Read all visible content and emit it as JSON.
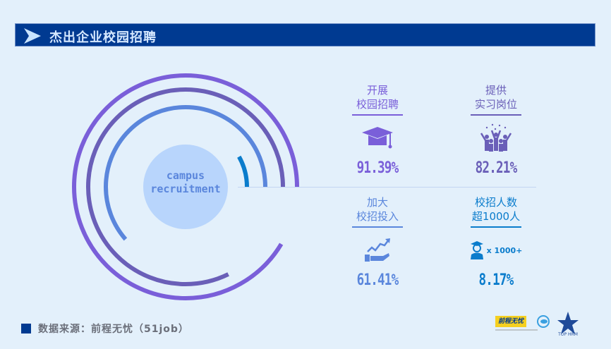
{
  "header": {
    "title": "杰出企业校园招聘",
    "icon": "chevron-right-icon"
  },
  "center_label": {
    "line1": "campus",
    "line2": "recruitment"
  },
  "stats": [
    {
      "title1": "开展",
      "title2": "校园招聘",
      "value": "91.39%",
      "fraction": 0.9139,
      "color": "#7a5fd9",
      "icon": "graduation-cap-icon"
    },
    {
      "title1": "提供",
      "title2": "实习岗位",
      "value": "82.21%",
      "fraction": 0.8221,
      "color": "#6a5fb8",
      "icon": "cheering-people-icon"
    },
    {
      "title1": "加大",
      "title2": "校招投入",
      "value": "61.41%",
      "fraction": 0.6141,
      "color": "#5a86dc",
      "icon": "growth-hand-icon"
    },
    {
      "title1": "校招人数",
      "title2": "超1000人",
      "value": "8.17%",
      "fraction": 0.0817,
      "color": "#0a7ccc",
      "icon": "graduate-person-icon",
      "icon_text": "x 1000+"
    }
  ],
  "source": {
    "text": "数据来源：前程无忧（51job）"
  },
  "logos": {
    "logo1": "前程无忧",
    "logo3": "TOP HRM"
  }
}
